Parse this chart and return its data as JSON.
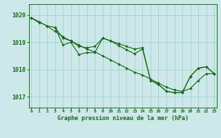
{
  "title": "Graphe pression niveau de la mer (hPa)",
  "xlabel_hours": [
    0,
    1,
    2,
    3,
    4,
    5,
    6,
    7,
    8,
    9,
    10,
    11,
    12,
    13,
    14,
    15,
    16,
    17,
    18,
    19,
    20,
    21,
    22,
    23
  ],
  "line_smooth": [
    1019.9,
    1019.75,
    1019.6,
    1019.4,
    1019.2,
    1019.05,
    1018.9,
    1018.75,
    1018.65,
    1018.5,
    1018.35,
    1018.2,
    1018.05,
    1017.9,
    1017.8,
    1017.65,
    1017.5,
    1017.35,
    1017.25,
    1017.2,
    1017.3,
    1017.6,
    1017.85,
    1017.85
  ],
  "line_mid": [
    1019.9,
    1019.75,
    1019.6,
    1019.55,
    1019.15,
    1019.05,
    1018.85,
    1018.8,
    1018.85,
    1019.15,
    1019.05,
    1018.95,
    1018.85,
    1018.75,
    1018.8,
    1017.6,
    1017.45,
    1017.2,
    1017.15,
    1017.15,
    1017.75,
    1018.05,
    1018.1,
    1017.85
  ],
  "line_jagged": [
    1019.9,
    1019.72,
    null,
    1019.55,
    1018.9,
    1019.0,
    1018.55,
    1018.62,
    1018.62,
    1019.15,
    1019.05,
    1018.88,
    1018.72,
    1018.58,
    1018.75,
    1017.6,
    1017.45,
    1017.2,
    1017.15,
    1017.15,
    1017.75,
    1018.05,
    1018.1,
    1017.85
  ],
  "line_color": "#1a6b1a",
  "bg_color": "#cce8e8",
  "grid_color": "#99cccc",
  "axis_color": "#1a6b1a",
  "text_color": "#1a6b1a",
  "ylabel_ticks": [
    1017,
    1018,
    1019,
    1020
  ],
  "ylim": [
    1016.6,
    1020.4
  ],
  "xlim": [
    -0.3,
    23.3
  ]
}
